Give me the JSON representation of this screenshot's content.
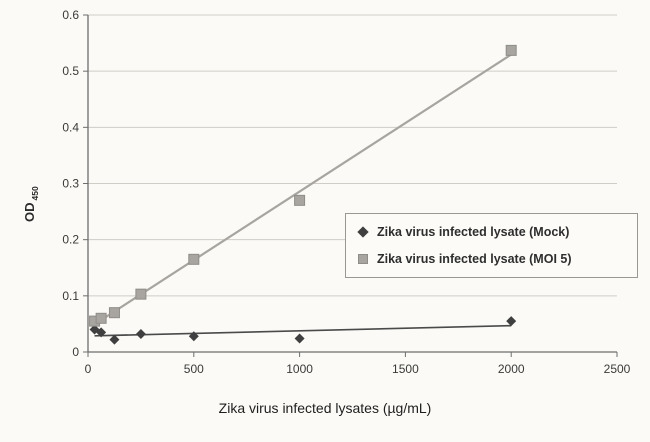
{
  "chart_data": {
    "type": "scatter",
    "title": "",
    "xlabel": "Zika virus infected lysates (µg/mL)",
    "ylabel": "OD 450",
    "ylabel_main": "OD",
    "ylabel_sub": "450",
    "xlim": [
      0,
      2500
    ],
    "ylim": [
      0,
      0.6
    ],
    "xticks": [
      0,
      500,
      1000,
      1500,
      2000,
      2500
    ],
    "yticks": [
      0,
      0.1,
      0.2,
      0.3,
      0.4,
      0.5,
      0.6
    ],
    "grid": "horizontal",
    "legend_position": "middle-right-box",
    "series": [
      {
        "name": "Zika virus infected lysate (Mock)",
        "marker": "diamond",
        "color": "#3f3f3f",
        "line_color": "#4a4a4a",
        "trendline": true,
        "x": [
          31,
          62,
          125,
          250,
          500,
          1000,
          2000
        ],
        "y": [
          0.04,
          0.035,
          0.022,
          0.032,
          0.028,
          0.024,
          0.055
        ]
      },
      {
        "name": "Zika virus infected lysate (MOI 5)",
        "marker": "square",
        "color": "#a8a5a0",
        "line_color": "#a8a5a0",
        "trendline": true,
        "x": [
          31,
          62,
          125,
          250,
          500,
          1000,
          2000
        ],
        "y": [
          0.055,
          0.06,
          0.07,
          0.103,
          0.165,
          0.27,
          0.537
        ]
      }
    ]
  }
}
